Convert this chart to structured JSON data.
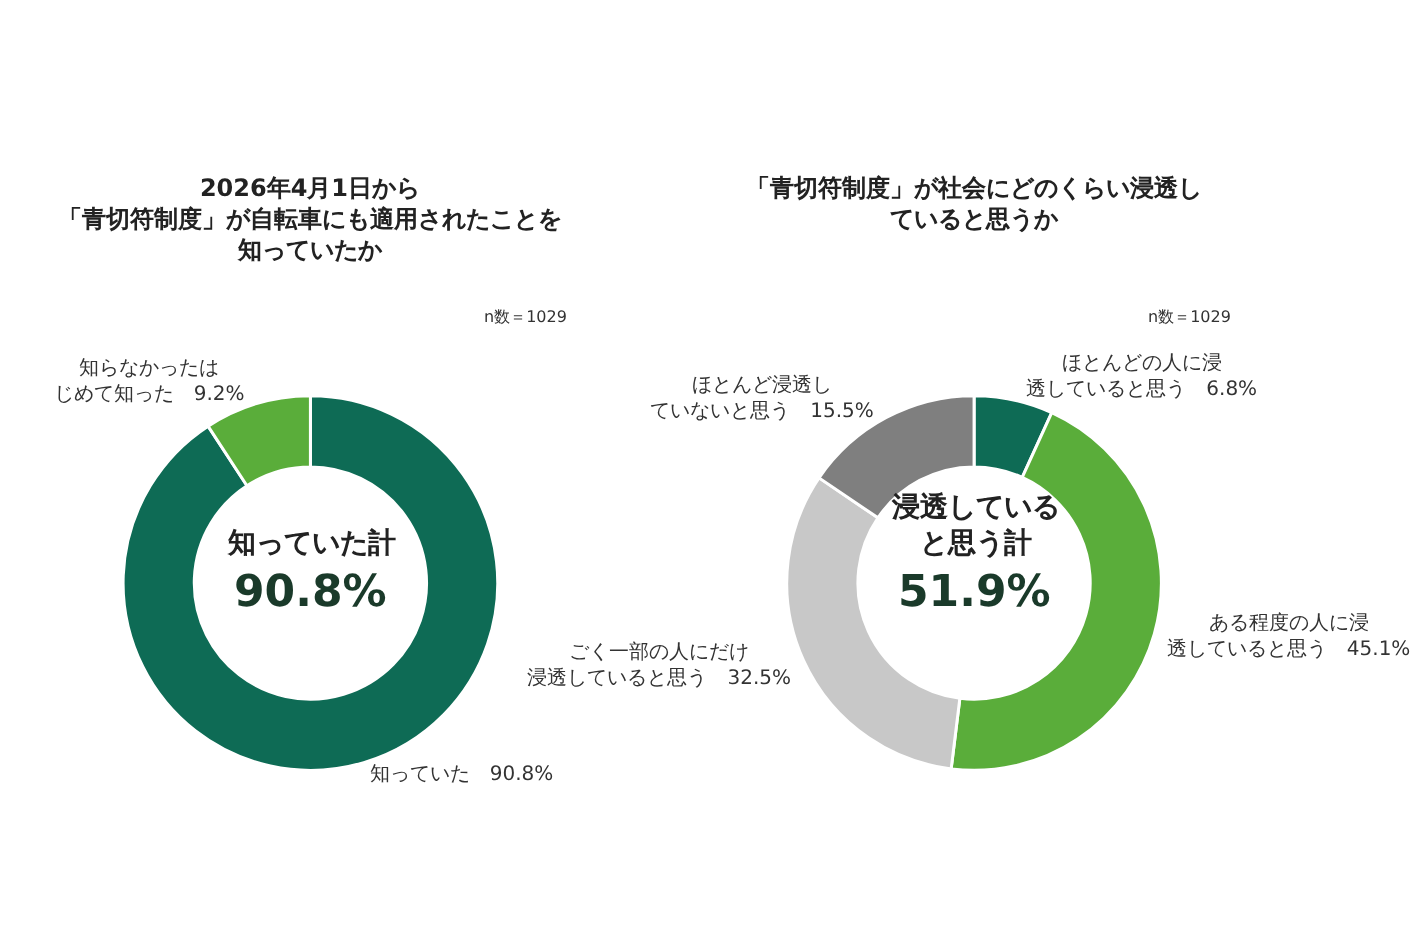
{
  "chart_data": [
    {
      "type": "donut",
      "title": "2026年4月1日から「青切符制度」が自転車にも適用されたことを知っていたか",
      "categories": [
        "知っていた",
        "知らなかったはじめて知った"
      ],
      "values": [
        90.8,
        9.2
      ],
      "value_labels": [
        "90.8%",
        "9.2%"
      ],
      "colors": [
        "#0e6b55",
        "#5aad3a"
      ],
      "annotations": [
        "n数＝1029",
        "知っていた計",
        "90.8%"
      ]
    },
    {
      "type": "donut",
      "title": "「青切符制度」が社会にどのくらい浸透していると思うか",
      "categories": [
        "ほとんどの人に浸透していると思う",
        "ある程度の人に浸透していると思う",
        "ごく一部の人にだけ浸透していると思う",
        "ほとんど浸透していないと思う"
      ],
      "values": [
        6.8,
        45.1,
        32.5,
        15.5
      ],
      "value_labels": [
        "6.8%",
        "45.1%",
        "32.5%",
        "15.5%"
      ],
      "colors": [
        "#0e6b55",
        "#5aad3a",
        "#c8c8c8",
        "#7f7f7f"
      ],
      "annotations": [
        "n数＝1029",
        "浸透していると思う計",
        "51.9%"
      ]
    }
  ]
}
